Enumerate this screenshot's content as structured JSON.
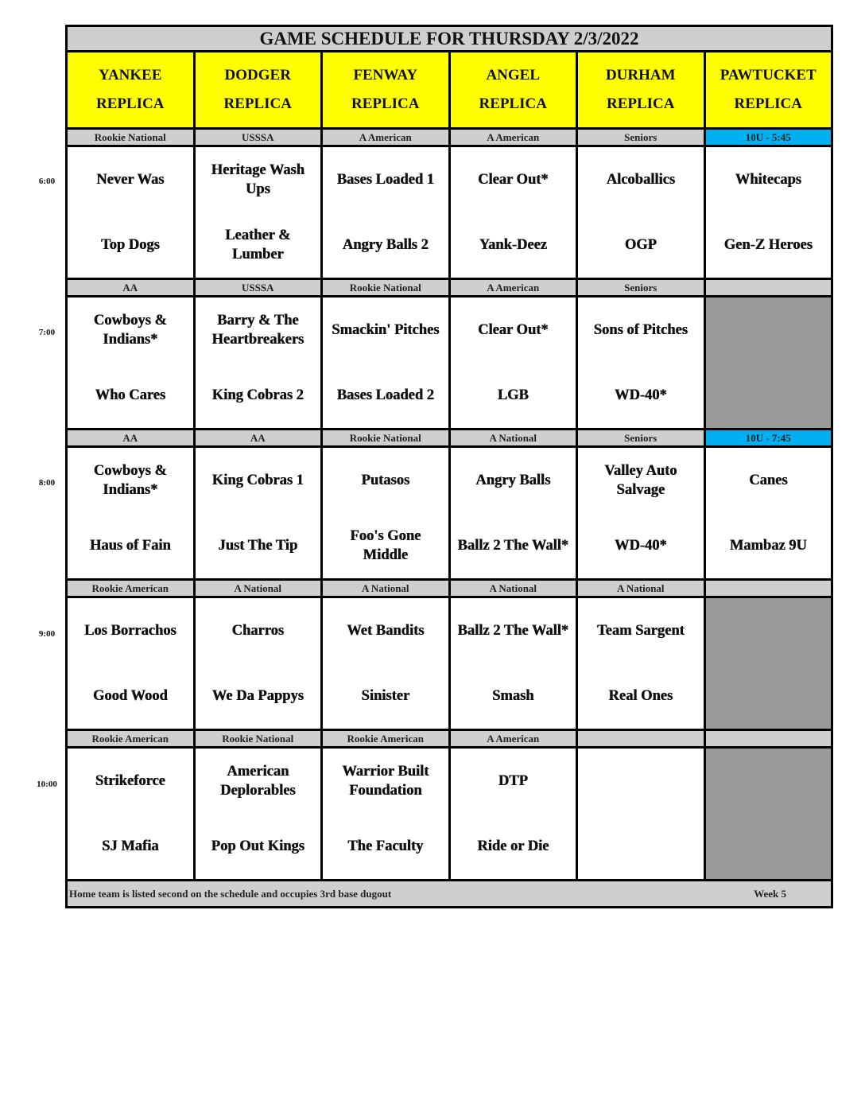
{
  "title": "GAME SCHEDULE FOR THURSDAY 2/3/2022",
  "fields": [
    {
      "line1": "YANKEE",
      "line2": "REPLICA"
    },
    {
      "line1": "DODGER",
      "line2": "REPLICA"
    },
    {
      "line1": "FENWAY",
      "line2": "REPLICA"
    },
    {
      "line1": "ANGEL",
      "line2": "REPLICA"
    },
    {
      "line1": "DURHAM",
      "line2": "REPLICA"
    },
    {
      "line1": "PAWTUCKET",
      "line2": "REPLICA"
    }
  ],
  "colors": {
    "header": "#ffff00",
    "division": "#cfcfcf",
    "highlight": "#00b0f0",
    "closed": "#999999"
  },
  "slots": [
    {
      "time": "6:00",
      "games": [
        {
          "division": "Rookie National",
          "teams": [
            "Never Was",
            "Top Dogs"
          ]
        },
        {
          "division": "USSSA",
          "teams": [
            "Heritage Wash Ups",
            "Leather & Lumber"
          ]
        },
        {
          "division": "A American",
          "teams": [
            "Bases Loaded 1",
            "Angry Balls 2"
          ]
        },
        {
          "division": "A American",
          "teams": [
            "Clear Out*",
            "Yank-Deez"
          ]
        },
        {
          "division": "Seniors",
          "teams": [
            "Alcoballics",
            "OGP"
          ]
        },
        {
          "division": "10U - 5:45",
          "highlight": true,
          "teams": [
            "Whitecaps",
            "Gen-Z Heroes"
          ]
        }
      ]
    },
    {
      "time": "7:00",
      "games": [
        {
          "division": "AA",
          "teams": [
            "Cowboys & Indians*",
            "Who Cares"
          ]
        },
        {
          "division": "USSSA",
          "teams": [
            "Barry & The Heartbreakers",
            "King Cobras 2"
          ]
        },
        {
          "division": "Rookie National",
          "teams": [
            "Smackin' Pitches",
            "Bases Loaded 2"
          ]
        },
        {
          "division": "A American",
          "teams": [
            "Clear Out*",
            "LGB"
          ]
        },
        {
          "division": "Seniors",
          "teams": [
            "Sons of Pitches",
            "WD-40*"
          ]
        },
        {
          "division": "",
          "closed": true,
          "teams": [
            "",
            ""
          ]
        }
      ]
    },
    {
      "time": "8:00",
      "games": [
        {
          "division": "AA",
          "teams": [
            "Cowboys & Indians*",
            "Haus of Fain"
          ]
        },
        {
          "division": "AA",
          "teams": [
            "King Cobras 1",
            "Just The Tip"
          ]
        },
        {
          "division": "Rookie National",
          "teams": [
            "Putasos",
            "Foo's Gone Middle"
          ]
        },
        {
          "division": "A National",
          "teams": [
            "Angry Balls",
            "Ballz 2 The Wall*"
          ]
        },
        {
          "division": "Seniors",
          "teams": [
            "Valley Auto Salvage",
            "WD-40*"
          ]
        },
        {
          "division": "10U - 7:45",
          "highlight": true,
          "teams": [
            "Canes",
            "Mambaz 9U"
          ]
        }
      ]
    },
    {
      "time": "9:00",
      "games": [
        {
          "division": "Rookie American",
          "teams": [
            "Los Borrachos",
            "Good Wood"
          ]
        },
        {
          "division": "A National",
          "teams": [
            "Charros",
            "We Da Pappys"
          ]
        },
        {
          "division": "A National",
          "teams": [
            "Wet Bandits",
            "Sinister"
          ]
        },
        {
          "division": "A National",
          "teams": [
            "Ballz 2 The Wall*",
            "Smash"
          ]
        },
        {
          "division": "A National",
          "teams": [
            "Team Sargent",
            "Real Ones"
          ]
        },
        {
          "division": "",
          "closed": true,
          "teams": [
            "",
            ""
          ]
        }
      ]
    },
    {
      "time": "10:00",
      "games": [
        {
          "division": "Rookie American",
          "teams": [
            "Strikeforce",
            "SJ Mafia"
          ]
        },
        {
          "division": "Rookie National",
          "teams": [
            "American Deplorables",
            "Pop Out Kings"
          ]
        },
        {
          "division": "Rookie American",
          "teams": [
            "Warrior Built Foundation",
            "The Faculty"
          ]
        },
        {
          "division": "A American",
          "teams": [
            "DTP",
            "Ride or Die"
          ]
        },
        {
          "division": "",
          "teams": [
            "",
            ""
          ]
        },
        {
          "division": "",
          "closed": true,
          "teams": [
            "",
            ""
          ]
        }
      ]
    }
  ],
  "footer": {
    "note": "Home team is listed second on the schedule and occupies 3rd base dugout",
    "week": "Week 5"
  }
}
